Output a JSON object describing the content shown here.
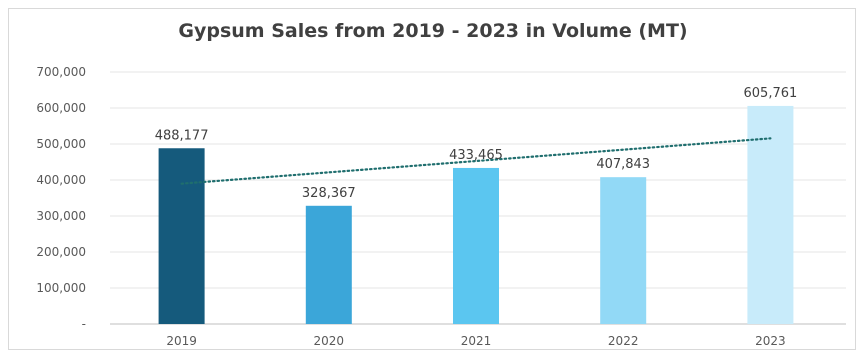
{
  "chart_data": {
    "type": "bar",
    "title": "Gypsum Sales from 2019 - 2023 in Volume (MT)",
    "categories": [
      "2019",
      "2020",
      "2021",
      "2022",
      "2023"
    ],
    "values": [
      488177,
      328367,
      433465,
      407843,
      605761
    ],
    "data_labels": [
      "488,177",
      "328,367",
      "433,465",
      "407,843",
      "605,761"
    ],
    "bar_colors": [
      "#155a7c",
      "#3ba6d9",
      "#5bc6f0",
      "#92d9f6",
      "#c8ebfa"
    ],
    "ylim": [
      0,
      700000
    ],
    "yticks": [
      0,
      100000,
      200000,
      300000,
      400000,
      500000,
      600000,
      700000
    ],
    "ytick_labels": [
      "-",
      "100,000",
      "200,000",
      "300,000",
      "400,000",
      "500,000",
      "600,000",
      "700,000"
    ],
    "grid": true,
    "trendline": {
      "type": "linear",
      "style": "dotted",
      "color": "#1f6e6e"
    },
    "xlabel": "",
    "ylabel": ""
  }
}
